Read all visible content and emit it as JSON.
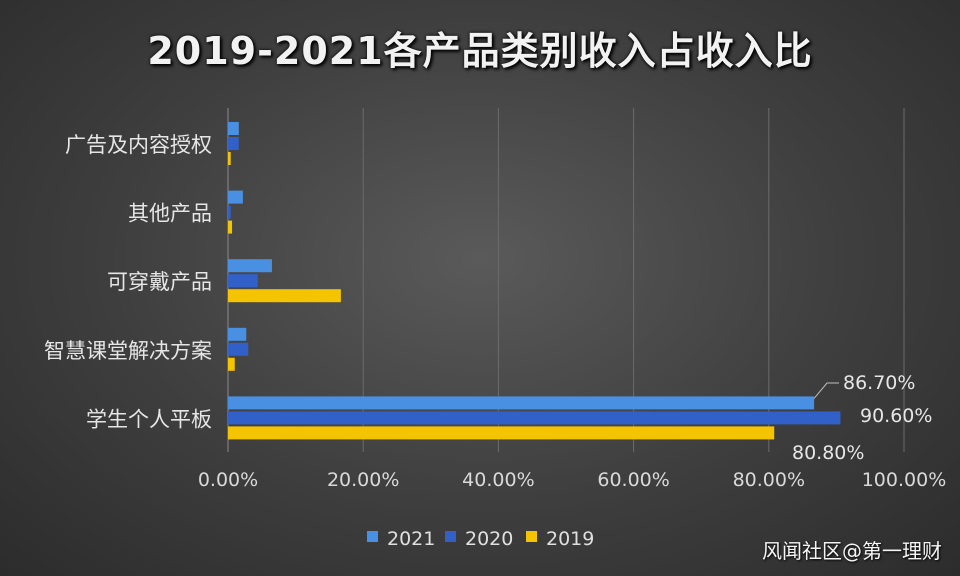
{
  "chart_data": {
    "type": "bar",
    "orientation": "horizontal",
    "title": "2019-2021各产品类别收入占收入比",
    "categories": [
      "广告及内容授权",
      "其他产品",
      "可穿戴产品",
      "智慧课堂解决方案",
      "学生个人平板"
    ],
    "series": [
      {
        "name": "2021",
        "color": "#4a90e2",
        "values": [
          1.6,
          2.2,
          6.5,
          2.7,
          86.7
        ]
      },
      {
        "name": "2020",
        "color": "#3160c8",
        "values": [
          1.6,
          0.4,
          4.4,
          3.0,
          90.6
        ]
      },
      {
        "name": "2019",
        "color": "#f5c400",
        "values": [
          0.4,
          0.6,
          16.7,
          1.0,
          80.8
        ]
      }
    ],
    "data_labels": [
      "86.70%",
      "90.60%",
      "80.80%"
    ],
    "x_ticks": [
      "0.00%",
      "20.00%",
      "40.00%",
      "60.00%",
      "80.00%",
      "100.00%"
    ],
    "xlim": [
      0,
      100
    ],
    "grid": true,
    "legend_position": "bottom"
  },
  "watermark": "风闻社区@第一理财"
}
